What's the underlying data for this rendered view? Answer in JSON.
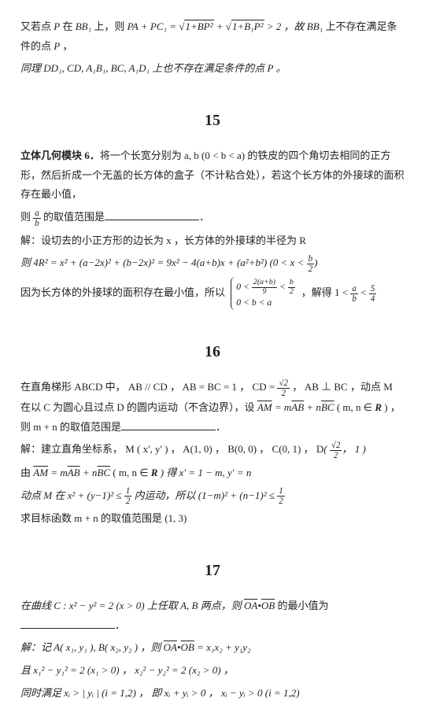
{
  "preamble": {
    "line1_a": "又若点 ",
    "line1_b": " 在 ",
    "line1_c": " 上，则 ",
    "pa_pc": "PA + PC₁ = ",
    "sqrt1": "1+BP²",
    "plus": " + ",
    "sqrt2": "1+B₁P²",
    "gt2": " > 2 ，故 ",
    "line1_d": " 上不存在满足条件的点 ",
    "line2": "同理 DD₁, CD, A₁B₁, BC, A₁D₁ 上也不存在满足条件的点 P 。",
    "P": "P",
    "BB1": "BB₁"
  },
  "q15": {
    "num": "15",
    "lead": "立体几何模块 6．",
    "body1": "将一个长宽分别为 a, b (0 < b < a) 的铁皮的四个角切去相同的正方形，然后折成一个无盖的长方体的盒子（不计粘合处），若这个长方体的外接球的面积存在最小值，",
    "body2a": "则 ",
    "body2b": " 的取值范围是",
    "frac_ab_n": "a",
    "frac_ab_d": "b",
    "sol1": "解：设切去的小正方形的边长为 x ，长方体的外接球的半径为 R",
    "sol2a": "则 4R² = x² + (a−2x)² + (b−2x)² = 9x² − 4(a+b)x + (a²+b²) ",
    "sol2b": "0 < x < ",
    "frac_b2_n": "b",
    "frac_b2_d": "2",
    "sol3a": "因为长方体的外接球的面积存在最小值，所以 ",
    "brace1_top_a": "0 < ",
    "brace1_top_b": " < ",
    "frac_2ab_n": "2(a+b)",
    "frac_2ab_d": "9",
    "brace1_bot": "0 < b < a",
    "sol3b": "，解得 1 < ",
    "sol3c": " < ",
    "frac_54_n": "5",
    "frac_54_d": "4"
  },
  "q16": {
    "num": "16",
    "l1a": "在直角梯形 ABCD 中， AB // CD ， AB = BC = 1 ， CD = ",
    "frac_r2_n": "√2",
    "frac_r2_d": "2",
    "l1b": " ， AB ⊥ BC ，动点 M 在以 C 为圆心且过点 D 的圆内运动（不含边界），设 ",
    "am": "AM",
    "ab": "AB",
    "bc": "BC",
    "l1c": " = m",
    "l1d": " + n",
    "l1e": " ( m, n ∈ ",
    "R": "R",
    "l1f": " ) ，则 m + n 的取值范围是",
    "sol1a": "解：建立直角坐标系， M ( x', y' ) ， A(1, 0) ， B(0, 0) ， C(0, 1) ， D",
    "D_in": "， 1",
    "sol2": "由 ",
    "sol2b": " ( m, n ∈ ",
    "sol2c": " ) 得 x' = 1 − m, y' = n",
    "sol3a": "动点 M 在 x² + (y−1)² ≤ ",
    "half_n": "1",
    "half_d": "2",
    "sol3b": " 内运动，所以 (1−m)² + (n−1)² ≤ ",
    "sol4": "求目标函数 m + n 的取值范围是 (1, 3)"
  },
  "q17": {
    "num": "17",
    "l1a": "在曲线 C : x² − y² = 2 (x > 0) 上任取 A, B 两点，则 ",
    "oa": "OA",
    "ob": "OB",
    "dot": "•",
    "l1b": " 的最小值为",
    "sol1": "解：记 A( x₁, y₁ ), B( x₂, y₂ ) ，则 ",
    "sol1b": " = x₁x₂ + y₁y₂",
    "sol2": "且 x₁² − y₁² = 2 (x₁ > 0) ， x₂² − y₂² = 2 (x₂ > 0) ，",
    "sol3": "同时满足 xᵢ > | yᵢ | (i = 1,2) ， 即 xᵢ + yᵢ > 0 ， xᵢ − yᵢ > 0 (i = 1,2)"
  }
}
